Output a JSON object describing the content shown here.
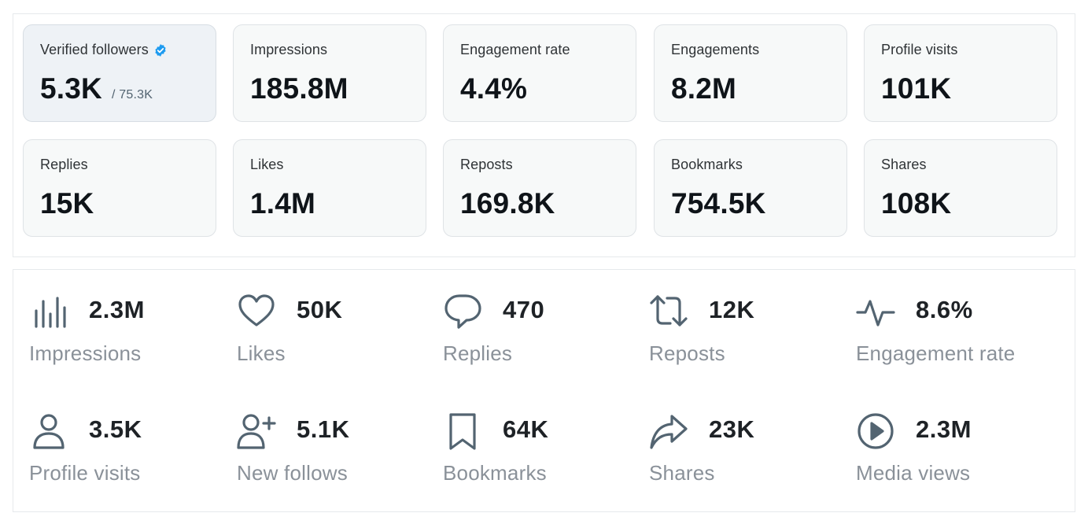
{
  "top_cards": [
    {
      "label": "Verified followers",
      "value": "5.3K",
      "sub": "/ 75.3K"
    },
    {
      "label": "Impressions",
      "value": "185.8M"
    },
    {
      "label": "Engagement rate",
      "value": "4.4%"
    },
    {
      "label": "Engagements",
      "value": "8.2M"
    },
    {
      "label": "Profile visits",
      "value": "101K"
    },
    {
      "label": "Replies",
      "value": "15K"
    },
    {
      "label": "Likes",
      "value": "1.4M"
    },
    {
      "label": "Reposts",
      "value": "169.8K"
    },
    {
      "label": "Bookmarks",
      "value": "754.5K"
    },
    {
      "label": "Shares",
      "value": "108K"
    }
  ],
  "bottom_stats": [
    {
      "icon": "bar-chart-icon",
      "value": "2.3M",
      "label": "Impressions"
    },
    {
      "icon": "heart-icon",
      "value": "50K",
      "label": "Likes"
    },
    {
      "icon": "speech-bubble-icon",
      "value": "470",
      "label": "Replies"
    },
    {
      "icon": "repost-icon",
      "value": "12K",
      "label": "Reposts"
    },
    {
      "icon": "pulse-icon",
      "value": "8.6%",
      "label": "Engagement rate"
    },
    {
      "icon": "person-icon",
      "value": "3.5K",
      "label": "Profile visits"
    },
    {
      "icon": "person-add-icon",
      "value": "5.1K",
      "label": "New follows"
    },
    {
      "icon": "bookmark-icon",
      "value": "64K",
      "label": "Bookmarks"
    },
    {
      "icon": "share-arrow-icon",
      "value": "23K",
      "label": "Shares"
    },
    {
      "icon": "play-circle-icon",
      "value": "2.3M",
      "label": "Media views"
    }
  ],
  "colors": {
    "verified_badge": "#1d9bf0",
    "icon_stroke": "#536471"
  }
}
